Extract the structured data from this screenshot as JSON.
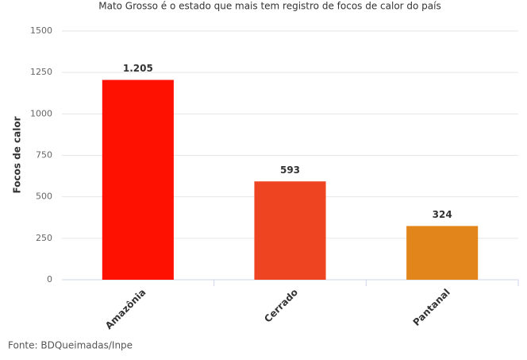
{
  "chart_data": {
    "type": "bar",
    "title": "Mato Grosso é o estado que mais tem registro de focos de calor do país",
    "y_label": "Focos de calor",
    "categories": [
      "Amazônia",
      "Cerrado",
      "Pantanal"
    ],
    "values": [
      1205,
      593,
      324
    ],
    "value_labels": [
      "1.205",
      "593",
      "324"
    ],
    "colors": [
      "#fe1100",
      "#ee4422",
      "#e2851a"
    ],
    "ylim": [
      0,
      1500
    ],
    "yticks": [
      0,
      250,
      500,
      750,
      1000,
      1250,
      1500
    ],
    "grid": true,
    "source": "Fonte: BDQueimadas/Inpe"
  }
}
